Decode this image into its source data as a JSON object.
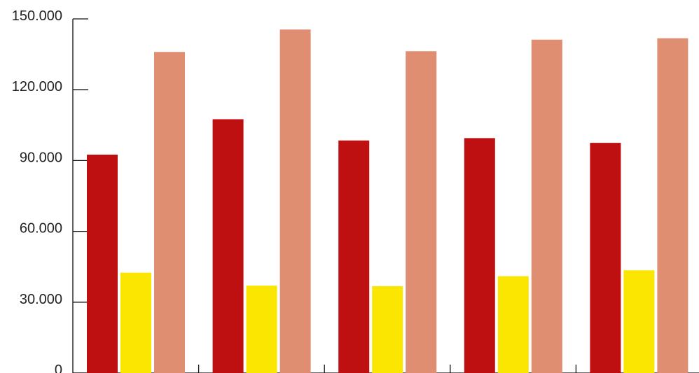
{
  "chart_data": {
    "type": "bar",
    "title": "",
    "xlabel": "",
    "ylabel": "",
    "ylim": [
      0,
      150000
    ],
    "yticks": [
      0,
      30000,
      60000,
      90000,
      120000,
      150000
    ],
    "ytick_labels": [
      "0",
      "30.000",
      "60.000",
      "90.000",
      "120.000",
      "150.000"
    ],
    "categories": [
      "",
      "",
      "",
      "",
      ""
    ],
    "grid": false,
    "legend": "none",
    "series": [
      {
        "color": "#be1010",
        "values": [
          92500,
          107500,
          98500,
          99500,
          97500
        ]
      },
      {
        "color": "#fae600",
        "values": [
          42500,
          37000,
          36800,
          41000,
          43500
        ]
      },
      {
        "color": "#e08e71",
        "values": [
          136000,
          145500,
          136300,
          141200,
          141800
        ]
      }
    ]
  }
}
